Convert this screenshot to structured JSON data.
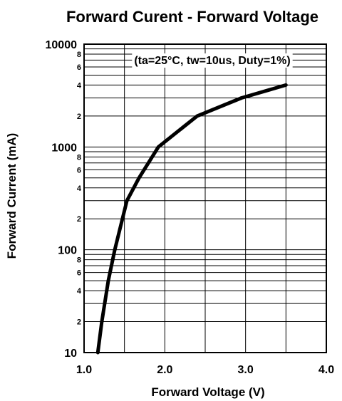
{
  "chart_data": {
    "type": "line",
    "title": "Forward Curent - Forward Voltage",
    "xlabel": "Forward Voltage (V)",
    "ylabel": "Forward Current (mA)",
    "annotation": "(ta=25°C, tw=10us, Duty=1%)",
    "xscale": "linear",
    "yscale": "log",
    "xlim": [
      1.0,
      4.0
    ],
    "ylim": [
      10,
      10000
    ],
    "grid": true,
    "x_ticks": [
      {
        "value": 1.0,
        "label": "1.0"
      },
      {
        "value": 2.0,
        "label": "2.0"
      },
      {
        "value": 3.0,
        "label": "3.0"
      },
      {
        "value": 4.0,
        "label": "4.0"
      }
    ],
    "x_grid_values": [
      1.0,
      1.5,
      2.0,
      2.5,
      3.0,
      3.5,
      4.0
    ],
    "y_major_ticks": [
      {
        "value": 10,
        "label": "10"
      },
      {
        "value": 100,
        "label": "100"
      },
      {
        "value": 1000,
        "label": "1000"
      },
      {
        "value": 10000,
        "label": "10000"
      }
    ],
    "y_minor_labels": [
      {
        "value": 20,
        "label": "2"
      },
      {
        "value": 40,
        "label": "4"
      },
      {
        "value": 60,
        "label": "6"
      },
      {
        "value": 80,
        "label": "8"
      },
      {
        "value": 200,
        "label": "2"
      },
      {
        "value": 400,
        "label": "4"
      },
      {
        "value": 600,
        "label": "6"
      },
      {
        "value": 800,
        "label": "8"
      },
      {
        "value": 2000,
        "label": "2"
      },
      {
        "value": 4000,
        "label": "4"
      },
      {
        "value": 6000,
        "label": "6"
      },
      {
        "value": 8000,
        "label": "8"
      }
    ],
    "series": [
      {
        "x": [
          1.17,
          1.22,
          1.3,
          1.38,
          1.53,
          1.68,
          1.92,
          2.4,
          2.95,
          3.5
        ],
        "y": [
          10,
          20,
          50,
          100,
          300,
          500,
          1000,
          2000,
          3000,
          4000
        ]
      }
    ]
  }
}
